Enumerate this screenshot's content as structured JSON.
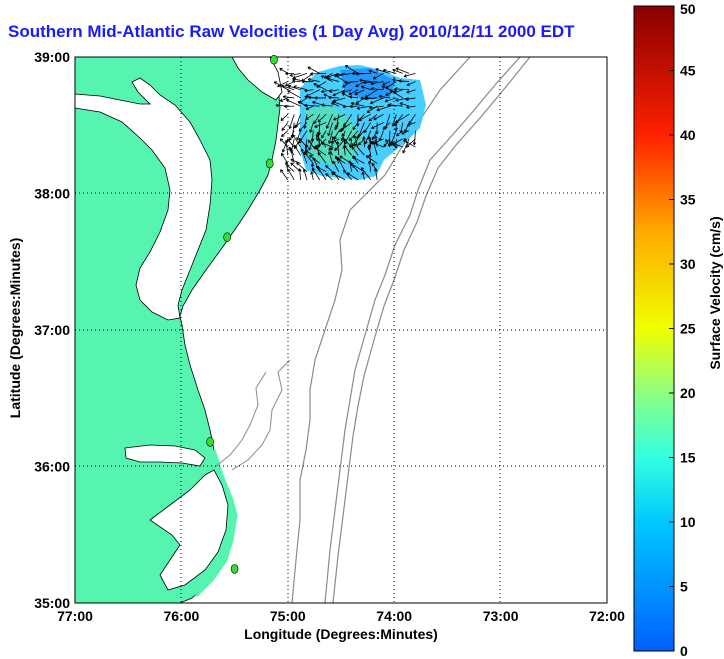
{
  "title": "Southern Mid-Atlantic Raw Velocities (1 Day Avg) 2010/12/11 2000 EDT",
  "axes": {
    "xlabel": "Longitude (Degrees:Minutes)",
    "ylabel": "Latitude (Degrees:Minutes)",
    "xticks": [
      "77:00",
      "76:00",
      "75:00",
      "74:00",
      "73:00",
      "72:00"
    ],
    "yticks": [
      "39:00",
      "38:00",
      "37:00",
      "36:00",
      "35:00"
    ]
  },
  "colorbar": {
    "label": "Surface Velocity (cm/s)",
    "ticks": [
      "0",
      "5",
      "10",
      "15",
      "20",
      "25",
      "30",
      "35",
      "40",
      "45",
      "50"
    ],
    "min": 0,
    "max": 50
  },
  "colors": {
    "land": "#55f5b0",
    "coast": "#000000",
    "isobath": "#8a8a8a",
    "station": "#33dd33",
    "title": "#1a1aff"
  },
  "chart_data": {
    "type": "map",
    "xlim": [
      -77,
      -72
    ],
    "ylim": [
      35,
      39
    ],
    "grid": true,
    "stations": [
      {
        "lon": -75.13,
        "lat": 38.98
      },
      {
        "lon": -75.17,
        "lat": 38.22
      },
      {
        "lon": -75.57,
        "lat": 37.68
      },
      {
        "lon": -75.73,
        "lat": 36.18
      },
      {
        "lon": -75.5,
        "lat": 35.25
      }
    ],
    "velocity_region": {
      "lon": [
        -75.0,
        -73.75
      ],
      "lat": [
        38.1,
        38.92
      ]
    }
  }
}
